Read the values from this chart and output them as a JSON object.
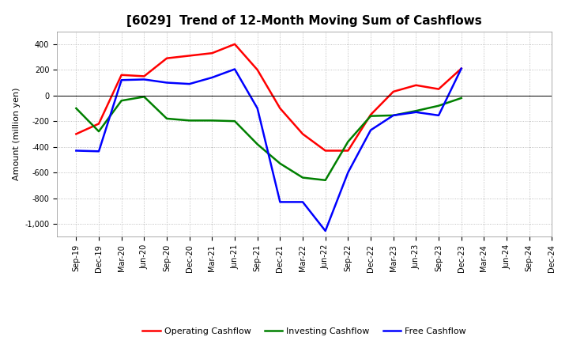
{
  "title": "[6029]  Trend of 12-Month Moving Sum of Cashflows",
  "ylabel": "Amount (million yen)",
  "background_color": "#ffffff",
  "grid_color": "#b0b0b0",
  "xlabels": [
    "Sep-19",
    "Dec-19",
    "Mar-20",
    "Jun-20",
    "Sep-20",
    "Dec-20",
    "Mar-21",
    "Jun-21",
    "Sep-21",
    "Dec-21",
    "Mar-22",
    "Jun-22",
    "Sep-22",
    "Dec-22",
    "Mar-23",
    "Jun-23",
    "Sep-23",
    "Dec-23",
    "Mar-24",
    "Jun-24",
    "Sep-24",
    "Dec-24"
  ],
  "operating": [
    -300,
    -220,
    160,
    150,
    290,
    310,
    330,
    400,
    200,
    -100,
    -300,
    -430,
    -430,
    -150,
    30,
    80,
    50,
    210,
    null,
    null,
    null,
    null
  ],
  "investing": [
    -100,
    -280,
    -40,
    -10,
    -180,
    -195,
    -195,
    -200,
    -380,
    -530,
    -640,
    -660,
    -360,
    -160,
    -155,
    -120,
    -80,
    -20,
    null,
    null,
    null,
    null
  ],
  "free": [
    -430,
    -435,
    120,
    125,
    100,
    90,
    140,
    205,
    -100,
    -830,
    -830,
    -1055,
    -600,
    -270,
    -155,
    -130,
    -155,
    210,
    null,
    null,
    null,
    null
  ],
  "ylim": [
    -1100,
    500
  ],
  "yticks": [
    -1000,
    -800,
    -600,
    -400,
    -200,
    0,
    200,
    400
  ],
  "operating_color": "#ff0000",
  "investing_color": "#008000",
  "free_color": "#0000ff",
  "line_width": 1.8,
  "title_fontsize": 11,
  "tick_fontsize": 7,
  "ylabel_fontsize": 8,
  "legend_fontsize": 8
}
